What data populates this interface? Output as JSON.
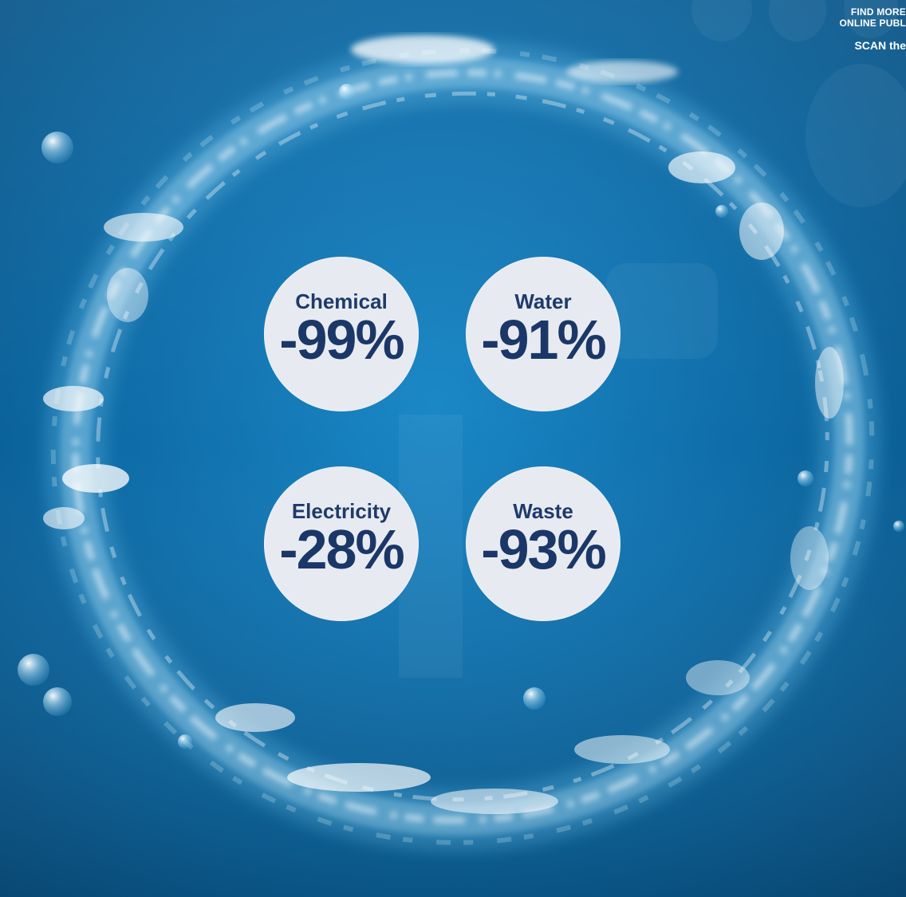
{
  "corner_note": {
    "line1": "FIND MORE",
    "line2": "ONLINE PUBL",
    "line3": "SCAN the"
  },
  "stats": [
    {
      "label": "Chemical",
      "value": "-99%"
    },
    {
      "label": "Water",
      "value": "-91%"
    },
    {
      "label": "Electricity",
      "value": "-28%"
    },
    {
      "label": "Waste",
      "value": "-93%"
    }
  ],
  "colors": {
    "background": "#0f6fab",
    "circle_fill": "#e7ebf1",
    "text_dark_blue": "#1b3768"
  }
}
